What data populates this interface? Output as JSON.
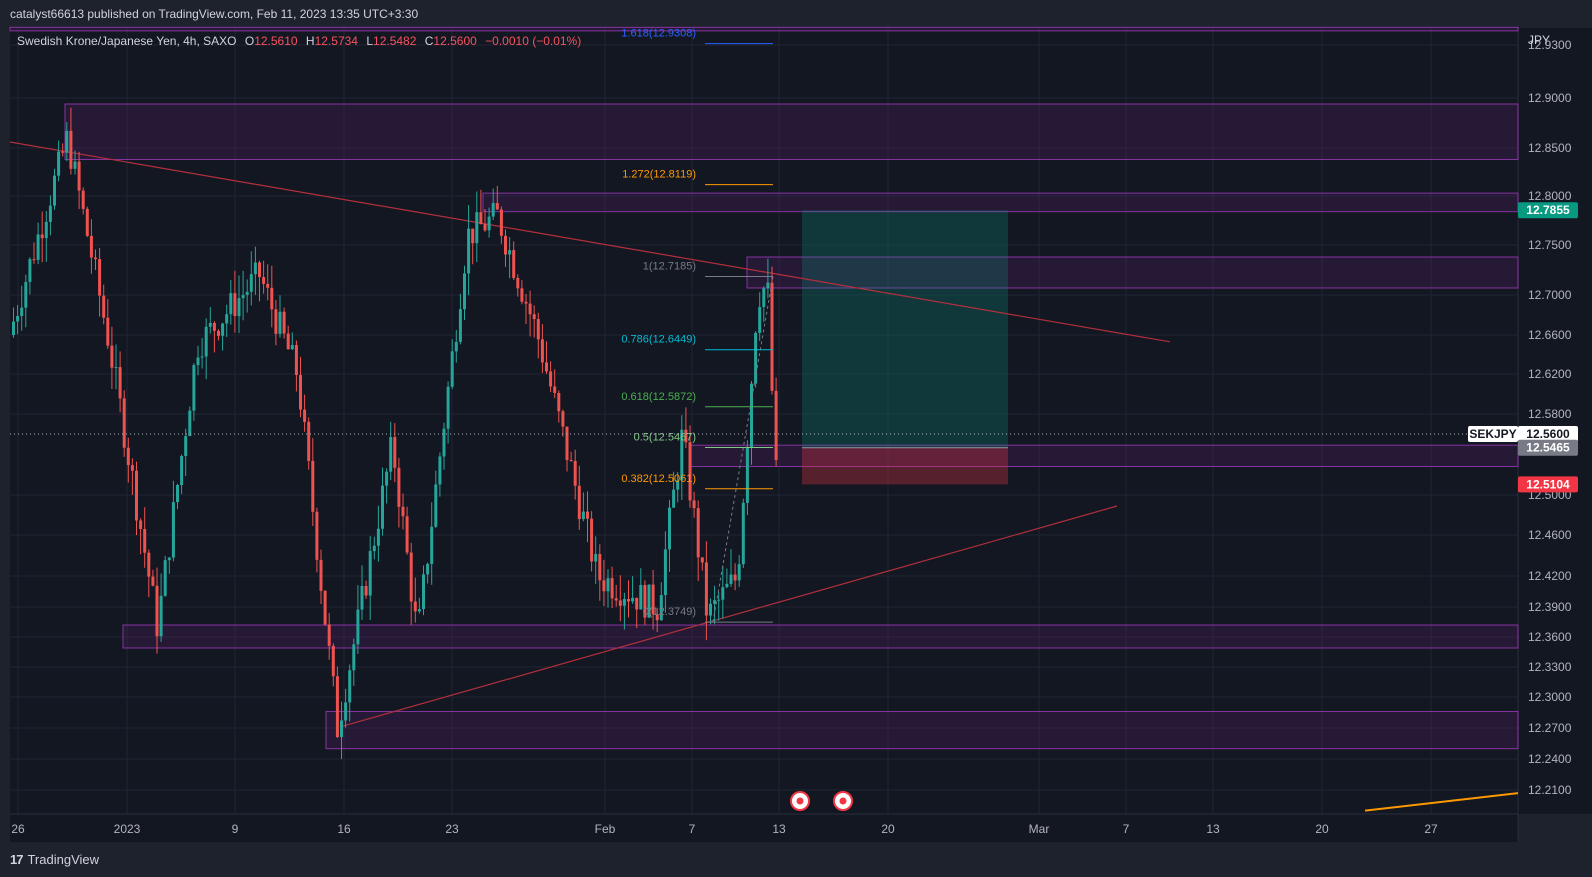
{
  "publisher_line": "catalyst66613 published on TradingView.com, Feb 11, 2023 13:35 UTC+3:30",
  "brand": "TradingView",
  "legend": {
    "symbol_line": "Swedish Krone/Japanese Yen, 4h, SAXO",
    "open_label": "O",
    "open": "12.5610",
    "high_label": "H",
    "high": "12.5734",
    "low_label": "L",
    "low": "12.5482",
    "close_label": "C",
    "close": "12.5600",
    "change": "−0.0010 (−0.01%)"
  },
  "currency": "JPY",
  "colors": {
    "up": "#26a69a",
    "down": "#ef5350",
    "zone": "#9c27b0",
    "target": "#089981",
    "stop": "#f23645"
  },
  "price_axis": [
    "12.9300",
    "12.9000",
    "12.8500",
    "12.8000",
    "12.7500",
    "12.7000",
    "12.6600",
    "12.6200",
    "12.5800",
    "12.5600",
    "12.5000",
    "12.4600",
    "12.4200",
    "12.3900",
    "12.3600",
    "12.3300",
    "12.3000",
    "12.2700",
    "12.2400",
    "12.2100"
  ],
  "time_axis": [
    "26",
    "2023",
    "9",
    "16",
    "23",
    "Feb",
    "7",
    "13",
    "20",
    "Mar",
    "7",
    "13",
    "20",
    "27"
  ],
  "price_tags": {
    "target": "12.7855",
    "symbol": "SEKJPY",
    "last": "12.5600",
    "entry": "12.5465",
    "stop": "12.5104"
  },
  "fib_levels": [
    {
      "label": "1.618(12.9308)",
      "price": 12.9308,
      "color": "#2962ff"
    },
    {
      "label": "1.272(12.8119)",
      "price": 12.8119,
      "color": "#ff9800"
    },
    {
      "label": "1(12.7185)",
      "price": 12.7185,
      "color": "#787b86"
    },
    {
      "label": "0.786(12.6449)",
      "price": 12.6449,
      "color": "#00bcd4"
    },
    {
      "label": "0.618(12.5872)",
      "price": 12.5872,
      "color": "#4caf50"
    },
    {
      "label": "0.5(12.5467)",
      "price": 12.5467,
      "color": "#81c784"
    },
    {
      "label": "0.382(12.5061)",
      "price": 12.5061,
      "color": "#ff9800"
    },
    {
      "label": "0(12.3749)",
      "price": 12.3749,
      "color": "#787b86"
    }
  ],
  "chart_data": {
    "type": "candlestick",
    "symbol": "SEKJPY",
    "timeframe": "4h",
    "ylim": [
      12.19,
      12.94
    ],
    "zones": [
      {
        "name": "zone-top",
        "from": 12.938,
        "to": 12.94
      },
      {
        "name": "zone-12.84-12.90",
        "from": 12.838,
        "to": 12.894
      },
      {
        "name": "zone-12.78-12.80",
        "from": 12.784,
        "to": 12.803
      },
      {
        "name": "zone-12.70-12.74",
        "from": 12.707,
        "to": 12.738
      },
      {
        "name": "zone-12.53-12.55",
        "from": 12.528,
        "to": 12.549
      },
      {
        "name": "zone-12.35-12.37",
        "from": 12.349,
        "to": 12.372
      },
      {
        "name": "zone-12.25-12.28",
        "from": 12.25,
        "to": 12.286
      }
    ],
    "position": {
      "entry": 12.5465,
      "target": 12.7855,
      "stop": 12.5104
    }
  }
}
